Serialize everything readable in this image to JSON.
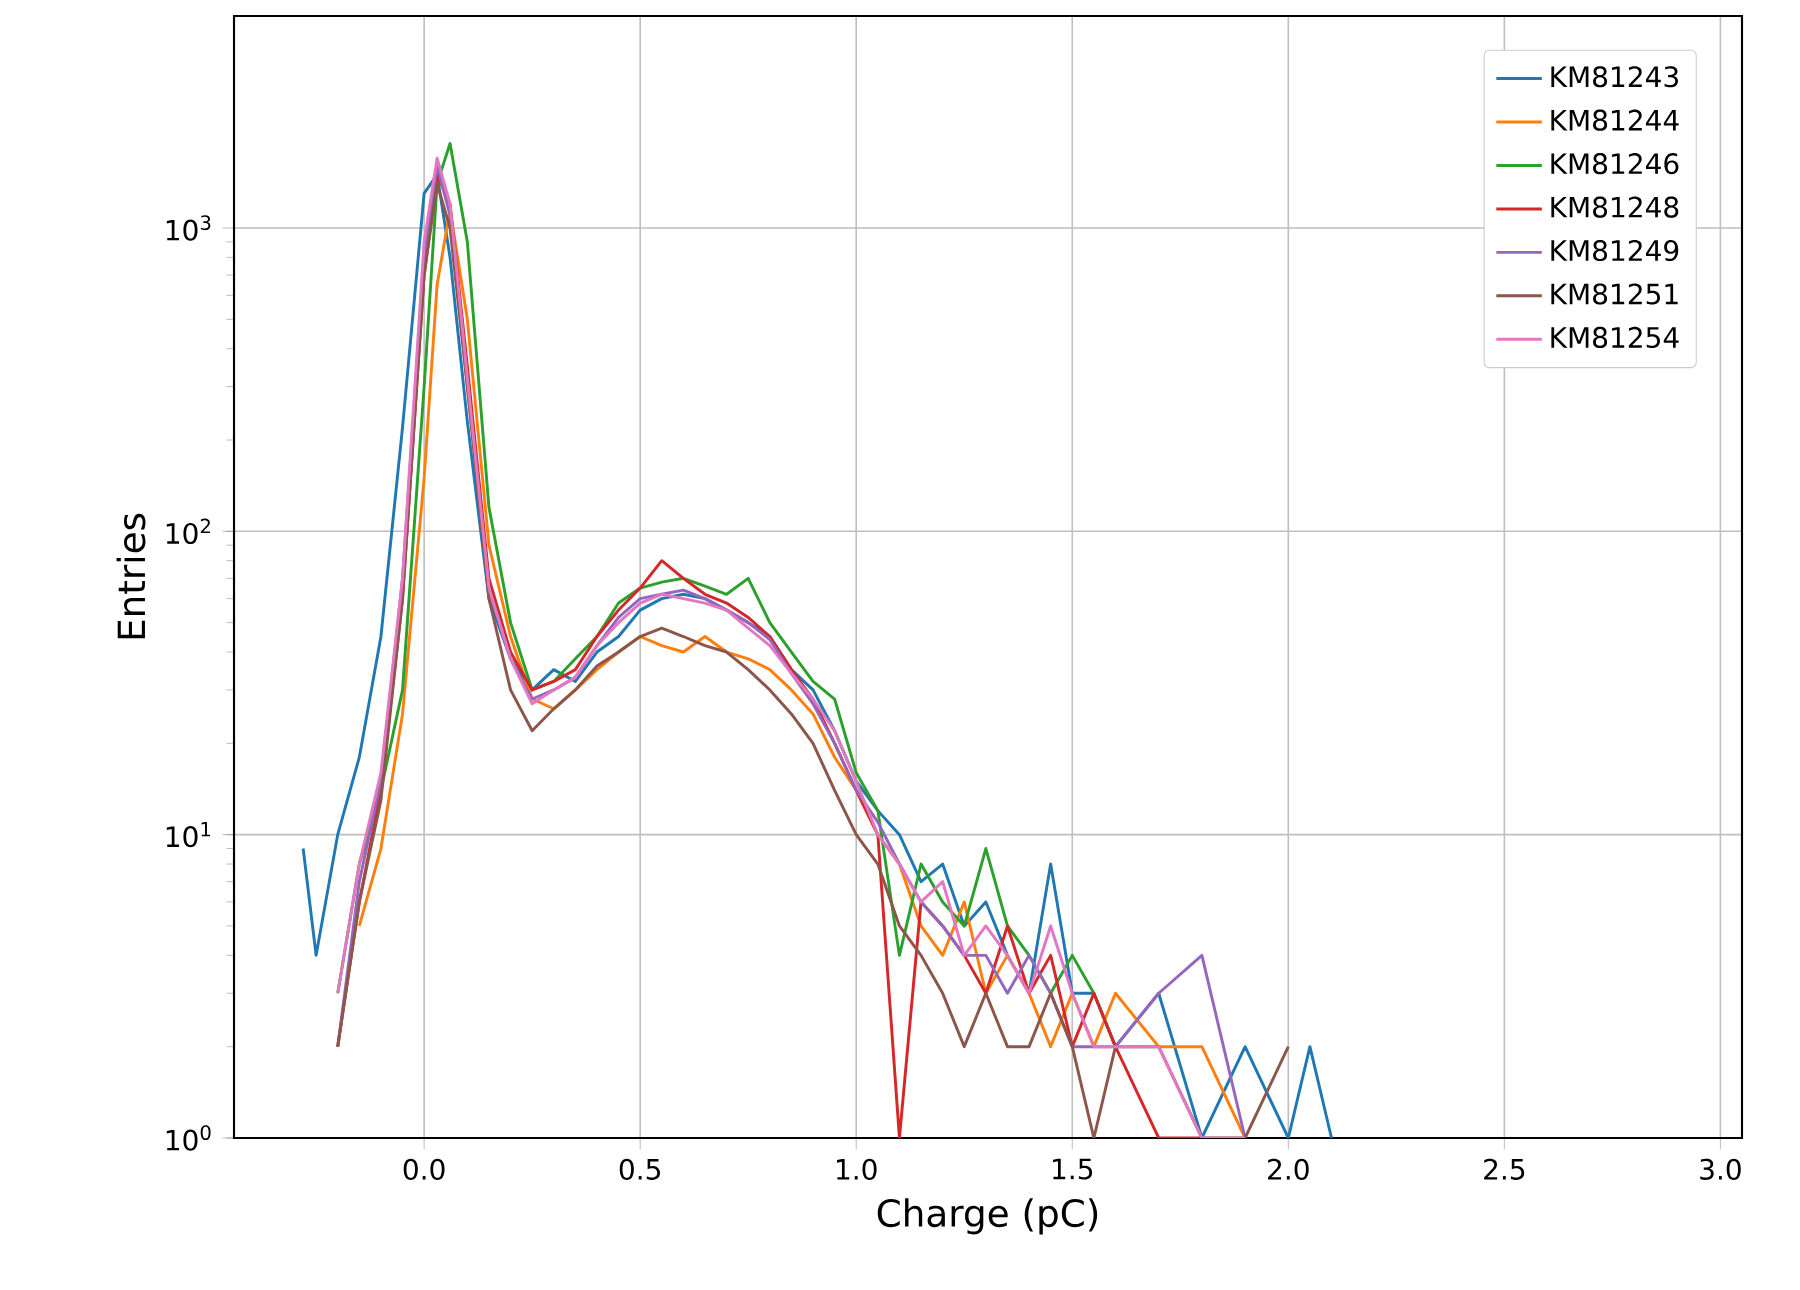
{
  "chart_data": {
    "type": "line",
    "xlabel": "Charge (pC)",
    "ylabel": "Entries",
    "log": "y",
    "grid": true,
    "legend": "top right",
    "marker": "none",
    "line_style": "solid",
    "xlim": [
      -0.44,
      3.05
    ],
    "ylim": [
      1,
      5000
    ],
    "xticks": [
      {
        "value": 0,
        "label": "0.0"
      },
      {
        "value": 0.5,
        "label": "0.5"
      },
      {
        "value": 1,
        "label": "1.0"
      },
      {
        "value": 1.5,
        "label": "1.5"
      },
      {
        "value": 2,
        "label": "2.0"
      },
      {
        "value": 2.5,
        "label": "2.5"
      },
      {
        "value": 3,
        "label": "3.0"
      }
    ],
    "yticks": [
      {
        "value": 1,
        "label": "10$^{0}$"
      },
      {
        "value": 10,
        "label": "10$^{1}$"
      },
      {
        "value": 100,
        "label": "10$^{2}$"
      },
      {
        "value": 1000,
        "label": "10$^{3}$"
      }
    ],
    "x": [
      -0.28,
      -0.25,
      -0.2,
      -0.15,
      -0.1,
      -0.05,
      0,
      0.03,
      0.06,
      0.1,
      0.15,
      0.2,
      0.25,
      0.3,
      0.35,
      0.4,
      0.45,
      0.5,
      0.55,
      0.6,
      0.65,
      0.7,
      0.75,
      0.8,
      0.85,
      0.9,
      0.95,
      1.0,
      1.05,
      1.1,
      1.15,
      1.2,
      1.25,
      1.3,
      1.35,
      1.4,
      1.45,
      1.5,
      1.55,
      1.6,
      1.7,
      1.8,
      1.9,
      2.0,
      2.05,
      2.1
    ],
    "series": [
      {
        "name": "KM81243",
        "color": "#1f77b4",
        "values": [
          9,
          4,
          10,
          18,
          45,
          220,
          1300,
          1500,
          800,
          230,
          60,
          38,
          30,
          35,
          32,
          40,
          45,
          55,
          60,
          62,
          60,
          55,
          50,
          45,
          35,
          30,
          22,
          15,
          12,
          10,
          7,
          8,
          5,
          6,
          4,
          3,
          8,
          3,
          3,
          2,
          3,
          1,
          2,
          1,
          2,
          1
        ]
      },
      {
        "name": "KM81244",
        "color": "#ff7f0e",
        "values": [
          null,
          null,
          null,
          5,
          9,
          25,
          150,
          650,
          1150,
          500,
          90,
          45,
          28,
          26,
          30,
          35,
          40,
          45,
          42,
          40,
          45,
          40,
          38,
          35,
          30,
          25,
          18,
          14,
          10,
          8,
          5,
          4,
          6,
          3,
          4,
          3,
          2,
          3,
          2,
          3,
          2,
          2,
          1,
          null,
          null,
          null
        ]
      },
      {
        "name": "KM81246",
        "color": "#2ca02c",
        "values": [
          null,
          null,
          3,
          8,
          14,
          30,
          300,
          1400,
          1900,
          900,
          120,
          50,
          30,
          32,
          38,
          45,
          58,
          65,
          68,
          70,
          66,
          62,
          70,
          50,
          40,
          32,
          28,
          16,
          12,
          4,
          8,
          6,
          5,
          9,
          5,
          4,
          3,
          4,
          3,
          2,
          null,
          null,
          null,
          null,
          null,
          null
        ]
      },
      {
        "name": "KM81248",
        "color": "#d62728",
        "values": [
          null,
          null,
          2,
          6,
          14,
          60,
          700,
          1500,
          1200,
          350,
          70,
          40,
          30,
          32,
          35,
          45,
          55,
          65,
          80,
          70,
          62,
          58,
          52,
          45,
          35,
          28,
          20,
          14,
          10,
          1,
          6,
          5,
          4,
          3,
          5,
          3,
          4,
          2,
          3,
          2,
          1,
          1,
          null,
          null,
          null,
          null
        ]
      },
      {
        "name": "KM81249",
        "color": "#9467bd",
        "values": [
          null,
          null,
          2,
          7,
          15,
          70,
          800,
          1600,
          1100,
          300,
          65,
          38,
          28,
          30,
          33,
          42,
          52,
          60,
          62,
          64,
          60,
          55,
          50,
          44,
          34,
          27,
          20,
          14,
          11,
          8,
          6,
          5,
          4,
          4,
          3,
          4,
          3,
          2,
          2,
          2,
          3,
          4,
          1,
          null,
          null,
          null
        ]
      },
      {
        "name": "KM81251",
        "color": "#8c564b",
        "values": [
          null,
          null,
          2,
          6,
          13,
          60,
          700,
          1400,
          1000,
          300,
          60,
          30,
          22,
          26,
          30,
          36,
          40,
          45,
          48,
          45,
          42,
          40,
          35,
          30,
          25,
          20,
          14,
          10,
          8,
          5,
          4,
          3,
          2,
          3,
          2,
          2,
          3,
          2,
          1,
          2,
          2,
          1,
          1,
          2,
          null,
          null
        ]
      },
      {
        "name": "KM81254",
        "color": "#e377c2",
        "values": [
          null,
          null,
          3,
          8,
          16,
          70,
          900,
          1700,
          1200,
          320,
          65,
          38,
          27,
          30,
          33,
          42,
          50,
          58,
          62,
          60,
          58,
          55,
          48,
          42,
          34,
          28,
          22,
          15,
          10,
          8,
          6,
          7,
          4,
          5,
          4,
          3,
          5,
          3,
          2,
          2,
          2,
          1,
          1,
          null,
          null,
          null
        ]
      }
    ]
  }
}
